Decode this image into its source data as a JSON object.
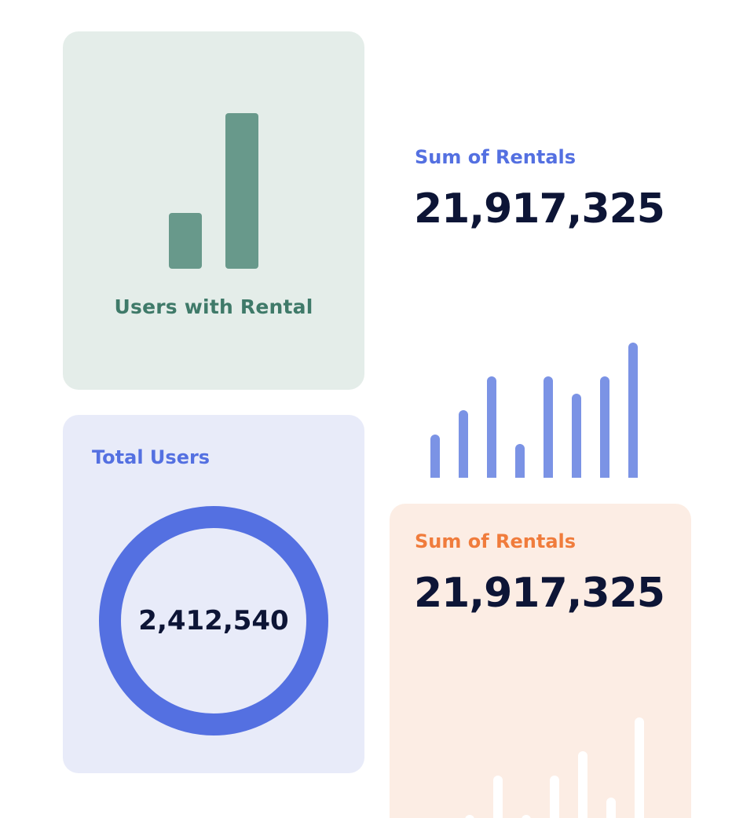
{
  "cards": {
    "users_with_rental": {
      "label": "Users with Rental",
      "bar_levels": [
        0.36,
        1.0
      ]
    },
    "sum_of_rentals_blue": {
      "label": "Sum of Rentals",
      "value": "21,917,325",
      "bar_levels": [
        0.32,
        0.5,
        0.75,
        0.25,
        0.75,
        0.62,
        0.75,
        1.0
      ]
    },
    "total_users": {
      "label": "Total Users",
      "value": "2,412,540",
      "donut_fill": 1.0
    },
    "sum_of_rentals_orange": {
      "label": "Sum of Rentals",
      "value": "21,917,325",
      "bar_levels": [
        0.16,
        0.5,
        0.16,
        0.5,
        0.71,
        0.31,
        1.0
      ]
    }
  },
  "colors": {
    "green_card_bg": "#e4ede9",
    "green_bar": "#68998b",
    "green_text": "#3f7a69",
    "blue_card_bg": "#e8ebf9",
    "blue_accent": "#5470e1",
    "blue_bar": "#7b93e5",
    "orange_card_bg": "#fcede4",
    "orange_text": "#f07c3c",
    "orange_bar": "#ffffff",
    "value_text": "#0d1536"
  }
}
